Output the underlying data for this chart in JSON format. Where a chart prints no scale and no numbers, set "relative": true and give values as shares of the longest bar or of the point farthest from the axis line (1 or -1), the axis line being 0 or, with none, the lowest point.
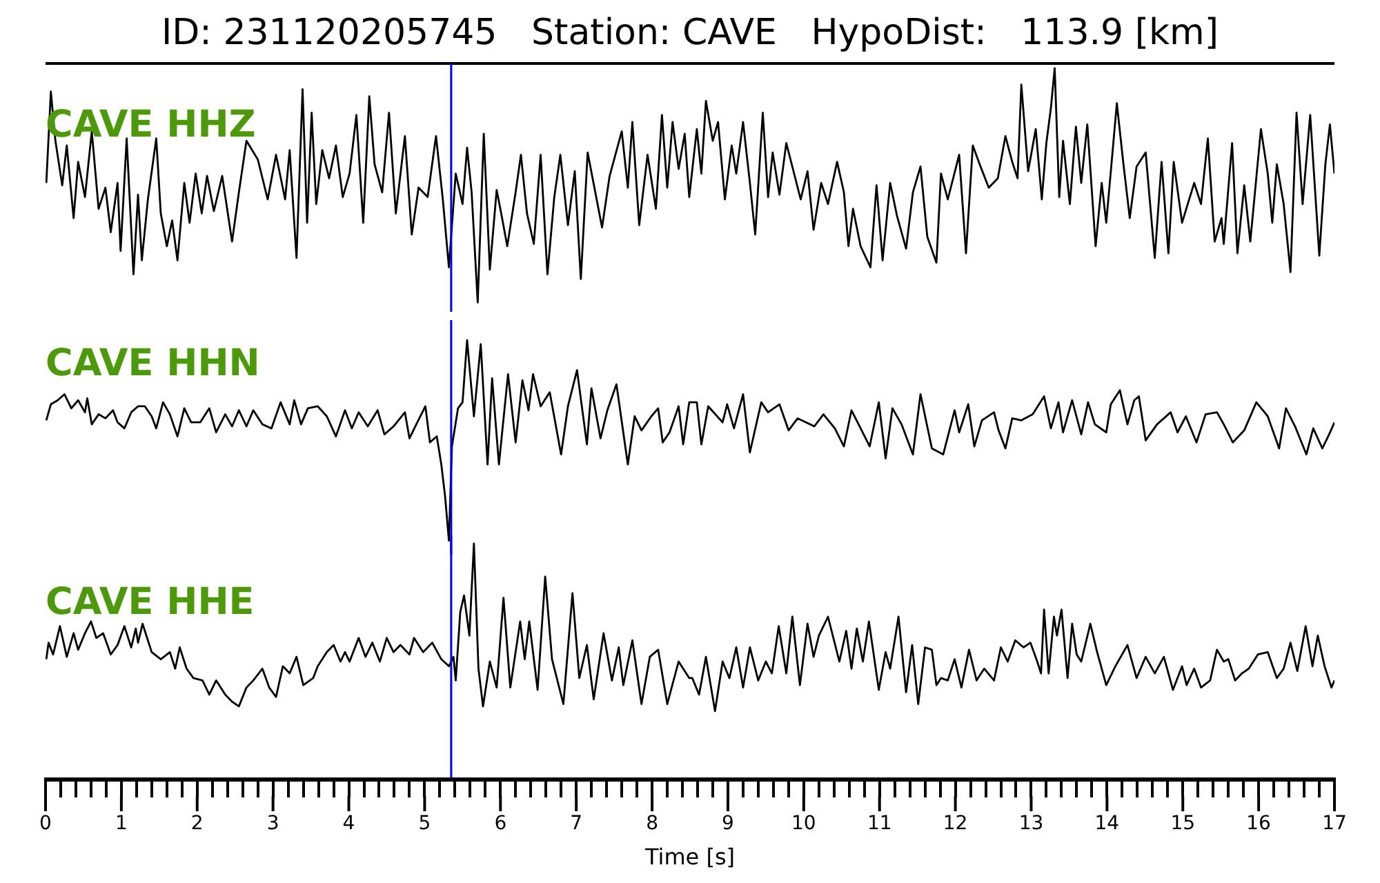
{
  "chart_data": [
    {
      "type": "line",
      "title": "ID: 231120205745   Station: CAVE   HypoDist:   113.9 [km]",
      "relative": true,
      "marker": "none",
      "tick_labels": false,
      "xlim": [
        0,
        17
      ],
      "ref_lines": [
        {
          "axis": "x",
          "value": 5.35,
          "color": "#0000ff"
        }
      ],
      "series": [
        {
          "name": "CAVE HHZ",
          "color": "#000000",
          "x": [
            0.01,
            0.07,
            0.13,
            0.22,
            0.28,
            0.37,
            0.43,
            0.52,
            0.61,
            0.7,
            0.79,
            0.86,
            0.95,
            0.99,
            1.07,
            1.16,
            1.22,
            1.27,
            1.35,
            1.46,
            1.52,
            1.6,
            1.67,
            1.74,
            1.83,
            1.9,
            1.98,
            2.06,
            2.13,
            2.22,
            2.33,
            2.46,
            2.55,
            2.65,
            2.8,
            2.93,
            3.04,
            3.16,
            3.22,
            3.31,
            3.39,
            3.45,
            3.51,
            3.57,
            3.65,
            3.74,
            3.83,
            3.92,
            4.01,
            4.1,
            4.19,
            4.27,
            4.34,
            4.44,
            4.53,
            4.62,
            4.74,
            4.83,
            4.92,
            5.04,
            5.15,
            5.24,
            5.32,
            5.41,
            5.5,
            5.56,
            5.62,
            5.7,
            5.78,
            5.86,
            5.95,
            6.01,
            6.09,
            6.2,
            6.27,
            6.35,
            6.44,
            6.53,
            6.62,
            6.71,
            6.79,
            6.89,
            6.98,
            7.06,
            7.15,
            7.34,
            7.44,
            7.6,
            7.68,
            7.74,
            7.83,
            7.94,
            8.05,
            8.13,
            8.2,
            8.27,
            8.35,
            8.43,
            8.49,
            8.59,
            8.65,
            8.71,
            8.8,
            8.87,
            8.96,
            9.05,
            9.11,
            9.2,
            9.29,
            9.36,
            9.46,
            9.53,
            9.59,
            9.68,
            9.77,
            9.96,
            10.05,
            10.13,
            10.23,
            10.32,
            10.44,
            10.53,
            10.59,
            10.65,
            10.75,
            10.88,
            10.96,
            11.04,
            11.14,
            11.23,
            11.35,
            11.44,
            11.54,
            11.63,
            11.75,
            11.81,
            11.9,
            12.05,
            12.14,
            12.23,
            12.32,
            12.44,
            12.56,
            12.66,
            12.75,
            12.82,
            12.87,
            12.96,
            13.06,
            13.14,
            13.2,
            13.26,
            13.31,
            13.37,
            13.42,
            13.51,
            13.59,
            13.66,
            13.74,
            13.85,
            13.93,
            13.99,
            14.13,
            14.21,
            14.3,
            14.39,
            14.51,
            14.63,
            14.72,
            14.81,
            14.88,
            14.99,
            15.15,
            15.24,
            15.33,
            15.42,
            15.51,
            15.54,
            15.65,
            15.72,
            15.81,
            15.89,
            16.03,
            16.12,
            16.18,
            16.24,
            16.33,
            16.42,
            16.5,
            16.58,
            16.68,
            16.8,
            16.88,
            16.94,
            17.0
          ],
          "values": [
            0.51,
            0.9,
            0.69,
            0.5,
            0.67,
            0.36,
            0.6,
            0.45,
            0.73,
            0.4,
            0.49,
            0.3,
            0.51,
            0.22,
            0.7,
            0.12,
            0.46,
            0.18,
            0.44,
            0.7,
            0.38,
            0.24,
            0.35,
            0.18,
            0.51,
            0.34,
            0.55,
            0.38,
            0.54,
            0.39,
            0.54,
            0.26,
            0.47,
            0.69,
            0.61,
            0.44,
            0.63,
            0.44,
            0.65,
            0.19,
            0.91,
            0.34,
            0.81,
            0.42,
            0.65,
            0.53,
            0.67,
            0.45,
            0.55,
            0.8,
            0.34,
            0.88,
            0.59,
            0.47,
            0.81,
            0.38,
            0.71,
            0.29,
            0.49,
            0.45,
            0.71,
            0.44,
            0.15,
            0.55,
            0.42,
            0.66,
            0.47,
            0,
            0.72,
            0.14,
            0.48,
            0.38,
            0.24,
            0.47,
            0.63,
            0.38,
            0.25,
            0.63,
            0.12,
            0.45,
            0.63,
            0.33,
            0.56,
            0.1,
            0.64,
            0.32,
            0.54,
            0.73,
            0.49,
            0.77,
            0.33,
            0.63,
            0.4,
            0.8,
            0.49,
            0.77,
            0.57,
            0.72,
            0.45,
            0.74,
            0.55,
            0.86,
            0.69,
            0.77,
            0.44,
            0.67,
            0.55,
            0.77,
            0.51,
            0.29,
            0.81,
            0.45,
            0.64,
            0.46,
            0.68,
            0.44,
            0.56,
            0.31,
            0.51,
            0.42,
            0.6,
            0.47,
            0.24,
            0.4,
            0.24,
            0.15,
            0.5,
            0.18,
            0.51,
            0.37,
            0.23,
            0.47,
            0.58,
            0.28,
            0.17,
            0.55,
            0.44,
            0.63,
            0.21,
            0.67,
            0.59,
            0.49,
            0.53,
            0.71,
            0.6,
            0.53,
            0.93,
            0.56,
            0.74,
            0.44,
            0.68,
            0.83,
            1.0,
            0.45,
            0.69,
            0.42,
            0.75,
            0.51,
            0.76,
            0.24,
            0.51,
            0.34,
            0.85,
            0.61,
            0.36,
            0.58,
            0.64,
            0.19,
            0.6,
            0.21,
            0.6,
            0.34,
            0.51,
            0.42,
            0.7,
            0.26,
            0.36,
            0.25,
            0.68,
            0.21,
            0.5,
            0.26,
            0.74,
            0.55,
            0.34,
            0.59,
            0.42,
            0.13,
            0.81,
            0.42,
            0.8,
            0.2,
            0.59,
            0.76,
            0.55
          ]
        }
      ]
    },
    {
      "type": "line",
      "relative": true,
      "marker": "none",
      "tick_labels": false,
      "xlim": [
        0,
        17
      ],
      "ref_lines": [
        {
          "axis": "x",
          "value": 5.35,
          "color": "#0000ff"
        }
      ],
      "series": [
        {
          "name": "CAVE HHN",
          "color": "#000000",
          "x": [
            0.01,
            0.07,
            0.16,
            0.25,
            0.34,
            0.43,
            0.52,
            0.55,
            0.61,
            0.7,
            0.79,
            0.89,
            0.95,
            1.04,
            1.13,
            1.22,
            1.31,
            1.4,
            1.46,
            1.55,
            1.64,
            1.74,
            1.83,
            1.92,
            2.04,
            2.16,
            2.25,
            2.37,
            2.46,
            2.55,
            2.65,
            2.74,
            2.86,
            2.98,
            3.1,
            3.22,
            3.28,
            3.37,
            3.46,
            3.59,
            3.71,
            3.83,
            3.95,
            4.04,
            4.13,
            4.25,
            4.38,
            4.47,
            4.59,
            4.74,
            4.8,
            4.89,
            5.01,
            5.07,
            5.16,
            5.22,
            5.27,
            5.32,
            5.36,
            5.44,
            5.5,
            5.56,
            5.65,
            5.74,
            5.83,
            5.89,
            5.98,
            6.1,
            6.2,
            6.29,
            6.37,
            6.43,
            6.53,
            6.65,
            6.8,
            6.89,
            7.01,
            7.14,
            7.2,
            7.32,
            7.41,
            7.53,
            7.68,
            7.77,
            7.86,
            7.99,
            8.08,
            8.14,
            8.23,
            8.35,
            8.41,
            8.49,
            8.59,
            8.65,
            8.74,
            8.93,
            8.99,
            9.08,
            9.2,
            9.29,
            9.44,
            9.53,
            9.68,
            9.8,
            9.92,
            10.14,
            10.26,
            10.41,
            10.53,
            10.63,
            10.75,
            10.87,
            10.99,
            11.08,
            11.17,
            11.29,
            11.44,
            11.54,
            11.69,
            11.84,
            11.99,
            12.05,
            12.17,
            12.25,
            12.35,
            12.51,
            12.57,
            12.66,
            12.75,
            12.87,
            13.02,
            13.17,
            13.26,
            13.36,
            13.42,
            13.54,
            13.66,
            13.75,
            13.84,
            13.99,
            14.05,
            14.17,
            14.27,
            14.36,
            14.42,
            14.51,
            14.66,
            14.84,
            14.93,
            15.04,
            15.18,
            15.3,
            15.45,
            15.54,
            15.66,
            15.81,
            15.97,
            16.12,
            16.27,
            16.36,
            16.48,
            16.63,
            16.72,
            16.84,
            16.93,
            17.0
          ],
          "values": [
            0.6,
            0.68,
            0.7,
            0.73,
            0.66,
            0.7,
            0.64,
            0.71,
            0.58,
            0.63,
            0.61,
            0.65,
            0.59,
            0.56,
            0.64,
            0.67,
            0.67,
            0.62,
            0.56,
            0.69,
            0.63,
            0.52,
            0.66,
            0.59,
            0.59,
            0.66,
            0.54,
            0.63,
            0.57,
            0.65,
            0.57,
            0.65,
            0.58,
            0.56,
            0.69,
            0.58,
            0.7,
            0.58,
            0.66,
            0.67,
            0.62,
            0.52,
            0.65,
            0.56,
            0.64,
            0.57,
            0.65,
            0.53,
            0.57,
            0.64,
            0.51,
            0.58,
            0.67,
            0.49,
            0.52,
            0.38,
            0.22,
            0,
            0.47,
            0.66,
            0.69,
            1.0,
            0.62,
            0.98,
            0.38,
            0.81,
            0.38,
            0.83,
            0.49,
            0.8,
            0.65,
            0.83,
            0.67,
            0.74,
            0.43,
            0.67,
            0.85,
            0.48,
            0.76,
            0.51,
            0.65,
            0.78,
            0.38,
            0.62,
            0.55,
            0.62,
            0.66,
            0.49,
            0.54,
            0.67,
            0.48,
            0.69,
            0.69,
            0.48,
            0.67,
            0.59,
            0.68,
            0.56,
            0.73,
            0.44,
            0.69,
            0.64,
            0.68,
            0.55,
            0.61,
            0.57,
            0.63,
            0.56,
            0.47,
            0.65,
            0.56,
            0.47,
            0.69,
            0.41,
            0.66,
            0.58,
            0.43,
            0.73,
            0.46,
            0.43,
            0.65,
            0.54,
            0.68,
            0.47,
            0.6,
            0.64,
            0.55,
            0.46,
            0.61,
            0.6,
            0.63,
            0.72,
            0.56,
            0.69,
            0.54,
            0.7,
            0.53,
            0.69,
            0.58,
            0.54,
            0.68,
            0.75,
            0.58,
            0.7,
            0.72,
            0.5,
            0.58,
            0.64,
            0.54,
            0.62,
            0.49,
            0.63,
            0.64,
            0.58,
            0.49,
            0.55,
            0.69,
            0.62,
            0.46,
            0.66,
            0.57,
            0.43,
            0.56,
            0.46,
            0.53,
            0.59
          ]
        }
      ]
    },
    {
      "type": "line",
      "relative": true,
      "marker": "none",
      "tick_labels": "x",
      "xlabel": "Time [s]",
      "xlim": [
        0,
        17
      ],
      "xticks": [
        0,
        {
          "value": 0.2,
          "label": null
        },
        {
          "value": 0.4,
          "label": null
        },
        {
          "value": 0.6,
          "label": null
        },
        {
          "value": 0.8,
          "label": null
        },
        1,
        {
          "value": 1.2,
          "label": null
        },
        {
          "value": 1.4,
          "label": null
        },
        {
          "value": 1.6,
          "label": null
        },
        {
          "value": 1.8,
          "label": null
        },
        2,
        {
          "value": 2.2,
          "label": null
        },
        {
          "value": 2.4,
          "label": null
        },
        {
          "value": 2.6,
          "label": null
        },
        {
          "value": 2.8,
          "label": null
        },
        3,
        {
          "value": 3.2,
          "label": null
        },
        {
          "value": 3.4,
          "label": null
        },
        {
          "value": 3.6,
          "label": null
        },
        {
          "value": 3.8,
          "label": null
        },
        4,
        {
          "value": 4.2,
          "label": null
        },
        {
          "value": 4.4,
          "label": null
        },
        {
          "value": 4.6,
          "label": null
        },
        {
          "value": 4.8,
          "label": null
        },
        5,
        {
          "value": 5.2,
          "label": null
        },
        {
          "value": 5.4,
          "label": null
        },
        {
          "value": 5.6,
          "label": null
        },
        {
          "value": 5.8,
          "label": null
        },
        6,
        {
          "value": 6.2,
          "label": null
        },
        {
          "value": 6.4,
          "label": null
        },
        {
          "value": 6.6,
          "label": null
        },
        {
          "value": 6.8,
          "label": null
        },
        7,
        {
          "value": 7.2,
          "label": null
        },
        {
          "value": 7.4,
          "label": null
        },
        {
          "value": 7.6,
          "label": null
        },
        {
          "value": 7.8,
          "label": null
        },
        8,
        {
          "value": 8.2,
          "label": null
        },
        {
          "value": 8.4,
          "label": null
        },
        {
          "value": 8.6,
          "label": null
        },
        {
          "value": 8.8,
          "label": null
        },
        9,
        {
          "value": 9.2,
          "label": null
        },
        {
          "value": 9.4,
          "label": null
        },
        {
          "value": 9.6,
          "label": null
        },
        {
          "value": 9.8,
          "label": null
        },
        10,
        {
          "value": 10.2,
          "label": null
        },
        {
          "value": 10.4,
          "label": null
        },
        {
          "value": 10.6,
          "label": null
        },
        {
          "value": 10.8,
          "label": null
        },
        11,
        {
          "value": 11.2,
          "label": null
        },
        {
          "value": 11.4,
          "label": null
        },
        {
          "value": 11.6,
          "label": null
        },
        {
          "value": 11.8,
          "label": null
        },
        12,
        {
          "value": 12.2,
          "label": null
        },
        {
          "value": 12.4,
          "label": null
        },
        {
          "value": 12.6,
          "label": null
        },
        {
          "value": 12.8,
          "label": null
        },
        13,
        {
          "value": 13.2,
          "label": null
        },
        {
          "value": 13.4,
          "label": null
        },
        {
          "value": 13.6,
          "label": null
        },
        {
          "value": 13.8,
          "label": null
        },
        14,
        {
          "value": 14.2,
          "label": null
        },
        {
          "value": 14.4,
          "label": null
        },
        {
          "value": 14.6,
          "label": null
        },
        {
          "value": 14.8,
          "label": null
        },
        15,
        {
          "value": 15.2,
          "label": null
        },
        {
          "value": 15.4,
          "label": null
        },
        {
          "value": 15.6,
          "label": null
        },
        {
          "value": 15.8,
          "label": null
        },
        16,
        {
          "value": 16.2,
          "label": null
        },
        {
          "value": 16.4,
          "label": null
        },
        {
          "value": 16.6,
          "label": null
        },
        {
          "value": 16.8,
          "label": null
        },
        17
      ],
      "ref_lines": [
        {
          "axis": "x",
          "value": 5.35,
          "color": "#0000ff"
        }
      ],
      "series": [
        {
          "name": "CAVE HHE",
          "color": "#000000",
          "x": [
            0.01,
            0.04,
            0.1,
            0.19,
            0.28,
            0.37,
            0.43,
            0.52,
            0.6,
            0.67,
            0.76,
            0.86,
            0.95,
            1.04,
            1.13,
            1.19,
            1.22,
            1.28,
            1.4,
            1.52,
            1.64,
            1.71,
            1.77,
            1.86,
            1.95,
            2.07,
            2.16,
            2.25,
            2.37,
            2.46,
            2.55,
            2.65,
            2.74,
            2.86,
            2.95,
            3.04,
            3.13,
            3.22,
            3.31,
            3.4,
            3.53,
            3.59,
            3.71,
            3.8,
            3.89,
            3.95,
            4.01,
            4.13,
            4.22,
            4.31,
            4.41,
            4.5,
            4.59,
            4.68,
            4.8,
            4.86,
            4.98,
            5.1,
            5.22,
            5.32,
            5.38,
            5.41,
            5.47,
            5.52,
            5.59,
            5.65,
            5.71,
            5.77,
            5.86,
            5.95,
            6.04,
            6.13,
            6.26,
            6.32,
            6.38,
            6.49,
            6.59,
            6.68,
            6.83,
            6.95,
            7.04,
            7.14,
            7.23,
            7.36,
            7.47,
            7.56,
            7.62,
            7.74,
            7.86,
            7.97,
            8.08,
            8.2,
            8.35,
            8.49,
            8.53,
            8.62,
            8.71,
            8.83,
            8.93,
            9.02,
            9.11,
            9.2,
            9.29,
            9.4,
            9.5,
            9.58,
            9.67,
            9.77,
            9.85,
            9.95,
            10.05,
            10.13,
            10.2,
            10.32,
            10.47,
            10.56,
            10.63,
            10.7,
            10.78,
            10.86,
            10.99,
            11.08,
            11.14,
            11.25,
            11.35,
            11.43,
            11.51,
            11.6,
            11.69,
            11.75,
            11.81,
            11.9,
            11.99,
            12.08,
            12.18,
            12.28,
            12.38,
            12.51,
            12.6,
            12.69,
            12.79,
            12.9,
            12.99,
            13.08,
            13.13,
            13.17,
            13.23,
            13.3,
            13.34,
            13.4,
            13.48,
            13.54,
            13.6,
            13.66,
            13.78,
            13.87,
            13.99,
            14.11,
            14.27,
            14.39,
            14.51,
            14.63,
            14.75,
            14.87,
            14.99,
            15.05,
            15.15,
            15.24,
            15.36,
            15.45,
            15.54,
            15.6,
            15.69,
            15.78,
            15.87,
            15.99,
            16.12,
            16.24,
            16.33,
            16.42,
            16.51,
            16.62,
            16.71,
            16.78,
            16.87,
            16.96,
            17.0
          ],
          "values": [
            0.51,
            0.58,
            0.53,
            0.65,
            0.52,
            0.62,
            0.55,
            0.62,
            0.67,
            0.6,
            0.62,
            0.53,
            0.57,
            0.65,
            0.56,
            0.64,
            0.58,
            0.66,
            0.54,
            0.51,
            0.54,
            0.47,
            0.56,
            0.47,
            0.43,
            0.42,
            0.36,
            0.42,
            0.36,
            0.33,
            0.31,
            0.39,
            0.42,
            0.47,
            0.39,
            0.35,
            0.48,
            0.45,
            0.52,
            0.4,
            0.43,
            0.48,
            0.54,
            0.57,
            0.5,
            0.54,
            0.5,
            0.6,
            0.52,
            0.58,
            0.5,
            0.6,
            0.54,
            0.57,
            0.53,
            0.6,
            0.54,
            0.58,
            0.51,
            0.48,
            0.52,
            0.42,
            0.71,
            0.78,
            0.61,
            1.0,
            0.47,
            0.31,
            0.5,
            0.39,
            0.77,
            0.39,
            0.67,
            0.51,
            0.67,
            0.38,
            0.86,
            0.51,
            0.32,
            0.79,
            0.43,
            0.57,
            0.34,
            0.62,
            0.42,
            0.56,
            0.4,
            0.59,
            0.32,
            0.52,
            0.55,
            0.32,
            0.5,
            0.43,
            0.43,
            0.36,
            0.52,
            0.29,
            0.5,
            0.43,
            0.56,
            0.39,
            0.56,
            0.42,
            0.5,
            0.45,
            0.65,
            0.45,
            0.69,
            0.4,
            0.66,
            0.52,
            0.61,
            0.69,
            0.5,
            0.63,
            0.47,
            0.64,
            0.5,
            0.67,
            0.38,
            0.54,
            0.47,
            0.69,
            0.37,
            0.57,
            0.32,
            0.56,
            0.55,
            0.4,
            0.43,
            0.42,
            0.51,
            0.39,
            0.55,
            0.42,
            0.47,
            0.42,
            0.56,
            0.5,
            0.59,
            0.56,
            0.58,
            0.5,
            0.45,
            0.72,
            0.45,
            0.69,
            0.61,
            0.72,
            0.43,
            0.66,
            0.53,
            0.5,
            0.66,
            0.54,
            0.4,
            0.48,
            0.57,
            0.43,
            0.52,
            0.45,
            0.52,
            0.38,
            0.48,
            0.4,
            0.47,
            0.39,
            0.42,
            0.55,
            0.5,
            0.51,
            0.42,
            0.45,
            0.47,
            0.53,
            0.54,
            0.43,
            0.47,
            0.58,
            0.46,
            0.65,
            0.48,
            0.61,
            0.48,
            0.39,
            0.42
          ]
        }
      ]
    }
  ]
}
